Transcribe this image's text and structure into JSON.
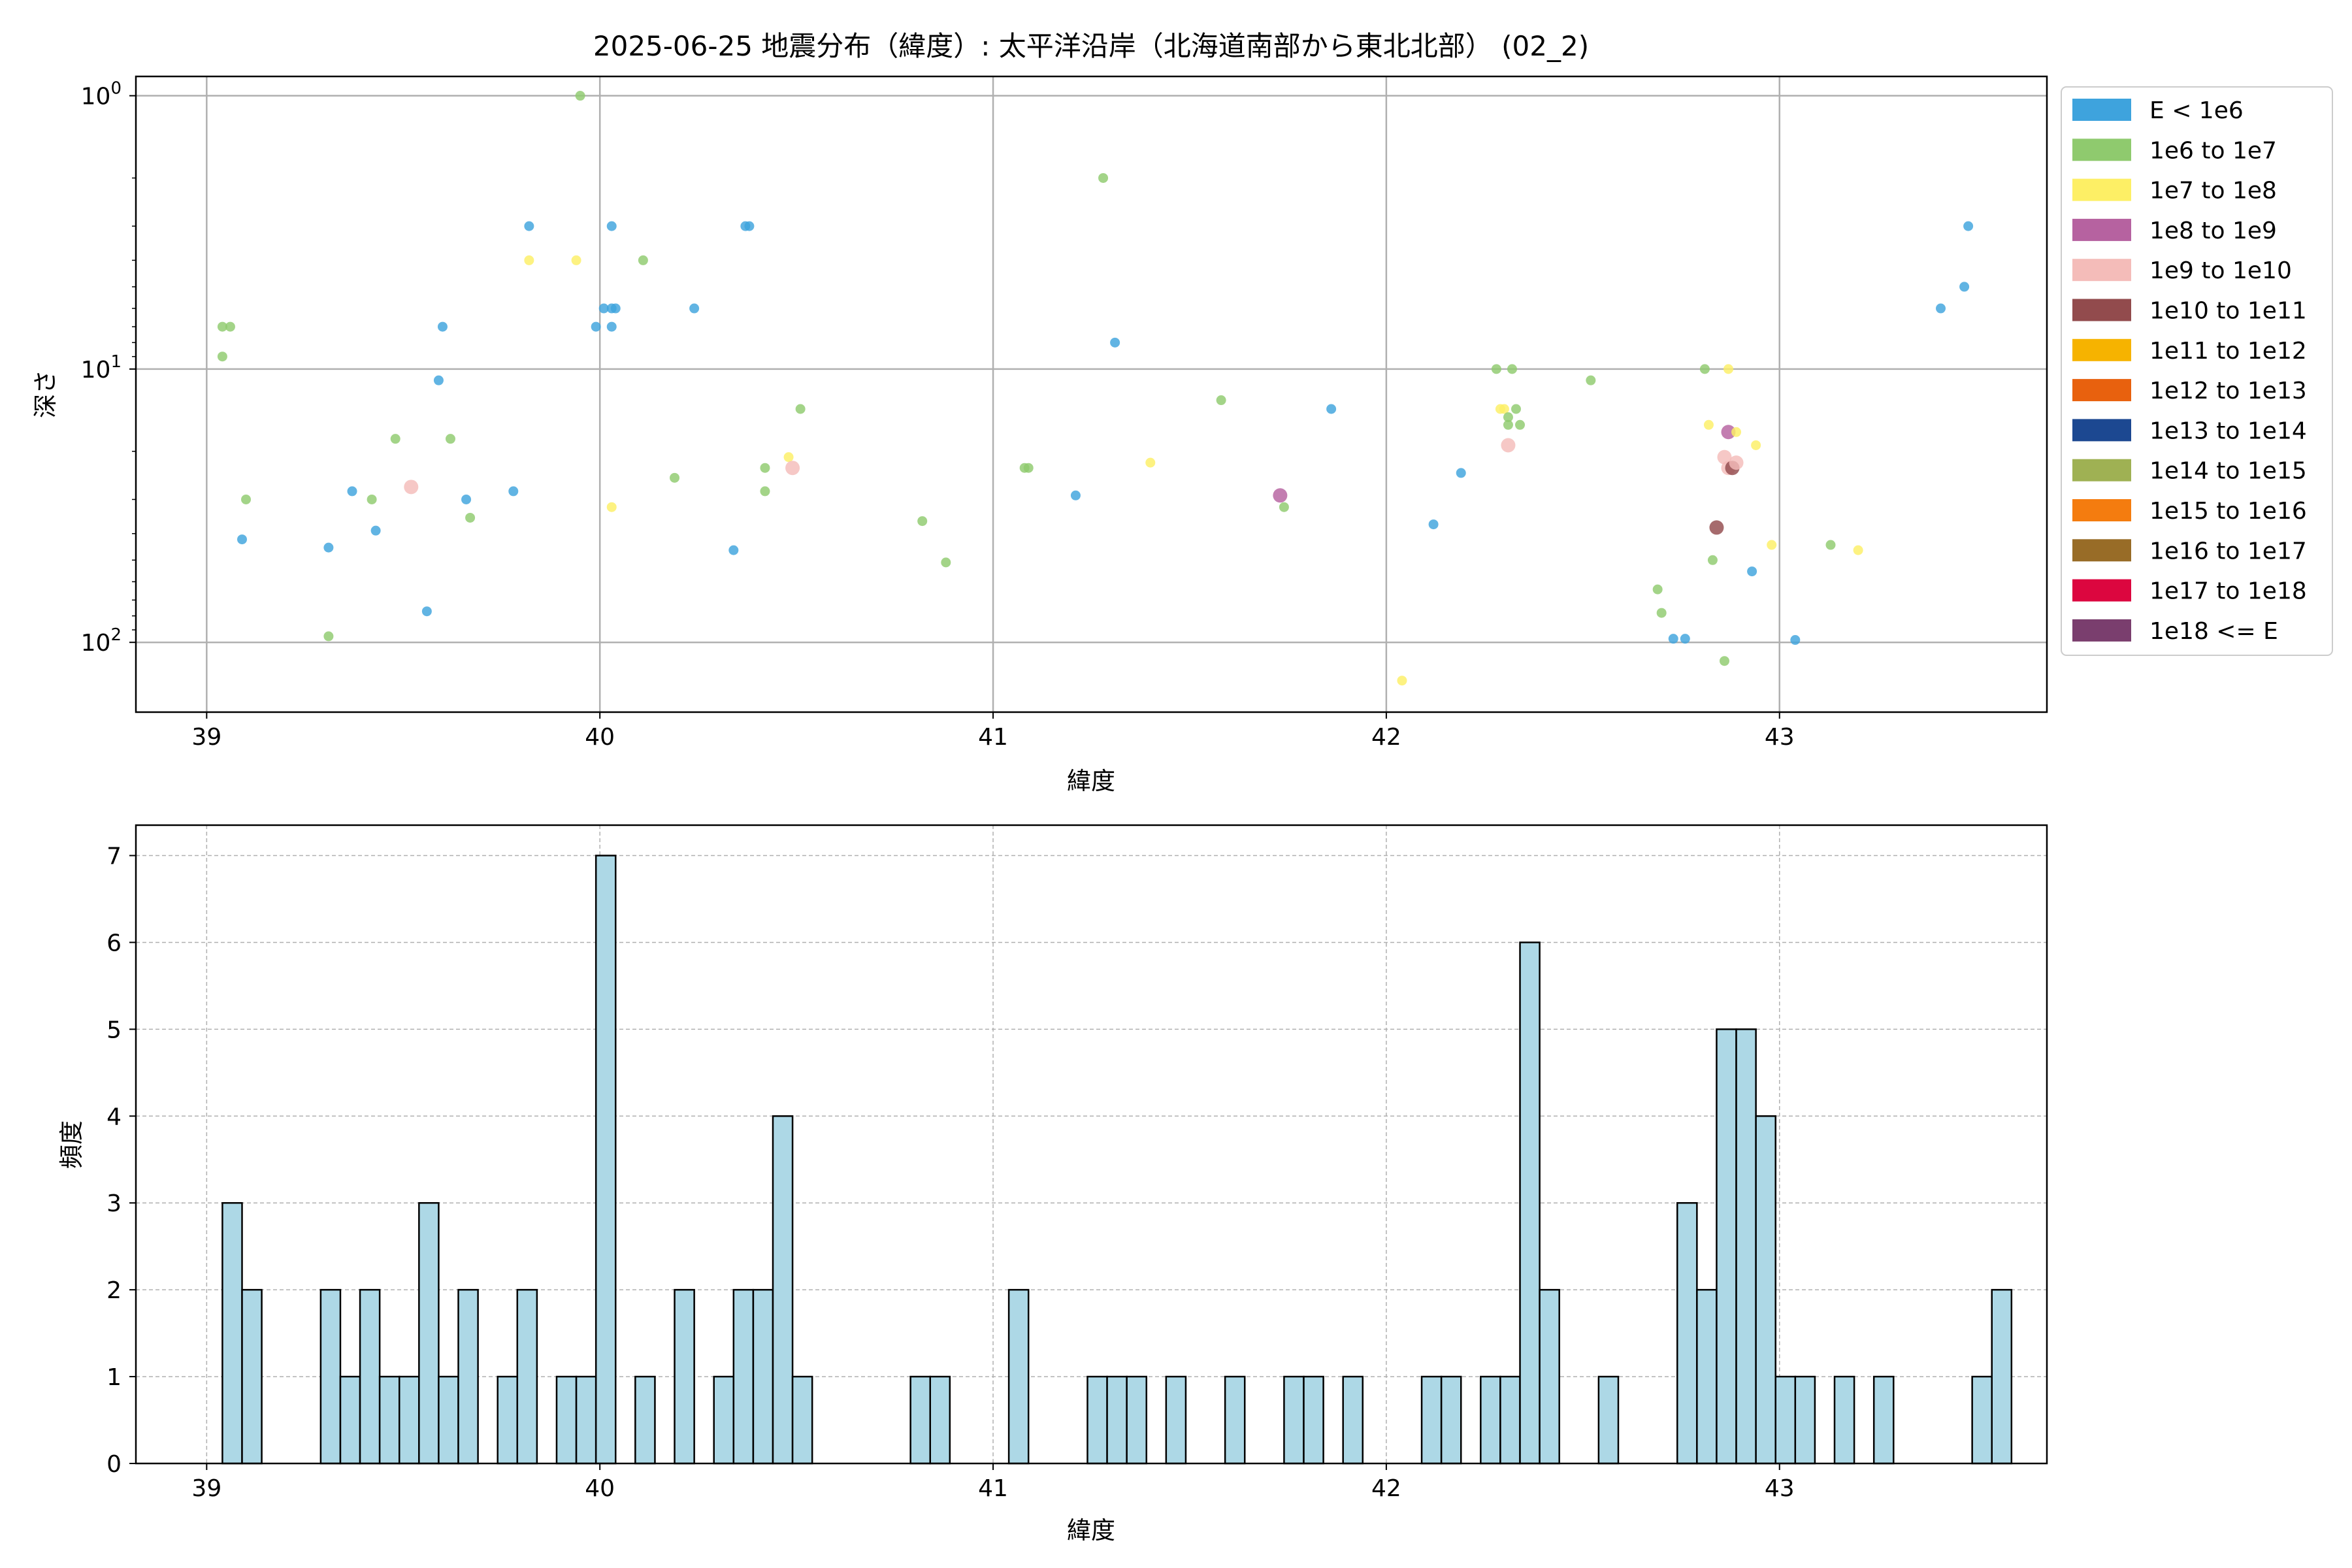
{
  "chart_data": [
    {
      "type": "scatter",
      "title": "2025-06-25 地震分布（緯度）: 太平洋沿岸（北海道南部から東北北部） (02_2)",
      "xlabel": "緯度",
      "ylabel": "深さ",
      "xlim": [
        38.82,
        43.68
      ],
      "ylim": [
        180,
        0.85
      ],
      "y_scale": "log",
      "y_inverted": true,
      "x_ticks": [
        39,
        40,
        41,
        42,
        43
      ],
      "y_ticks": [
        {
          "value": 1,
          "base": "10",
          "exp": "0"
        },
        {
          "value": 10,
          "base": "10",
          "exp": "1"
        },
        {
          "value": 100,
          "base": "10",
          "exp": "2"
        }
      ],
      "grid": true,
      "legend_position": "outside-right",
      "legend": [
        {
          "label": "E < 1e6",
          "color": "#3ea3dd"
        },
        {
          "label": "1e6 to 1e7",
          "color": "#8fca6e"
        },
        {
          "label": "1e7 to 1e8",
          "color": "#fdef65"
        },
        {
          "label": "1e8 to 1e9",
          "color": "#b662a0"
        },
        {
          "label": "1e9 to 1e10",
          "color": "#f4bcb9"
        },
        {
          "label": "1e10 to 1e11",
          "color": "#924b4d"
        },
        {
          "label": "1e11 to 1e12",
          "color": "#f6b300"
        },
        {
          "label": "1e12 to 1e13",
          "color": "#e8610e"
        },
        {
          "label": "1e13 to 1e14",
          "color": "#1c4891"
        },
        {
          "label": "1e14 to 1e15",
          "color": "#9fb153"
        },
        {
          "label": "1e15 to 1e16",
          "color": "#f47c0f"
        },
        {
          "label": "1e16 to 1e17",
          "color": "#986c27"
        },
        {
          "label": "1e17 to 1e18",
          "color": "#dc063f"
        },
        {
          "label": "1e18 <= E",
          "color": "#7a3e6e"
        }
      ],
      "points": [
        {
          "x": 39.04,
          "y": 7,
          "c": 1
        },
        {
          "x": 39.06,
          "y": 7,
          "c": 1
        },
        {
          "x": 39.04,
          "y": 9,
          "c": 1
        },
        {
          "x": 39.1,
          "y": 30,
          "c": 1
        },
        {
          "x": 39.09,
          "y": 42,
          "c": 0
        },
        {
          "x": 39.31,
          "y": 45,
          "c": 0
        },
        {
          "x": 39.31,
          "y": 95,
          "c": 1
        },
        {
          "x": 39.37,
          "y": 28,
          "c": 0
        },
        {
          "x": 39.42,
          "y": 30,
          "c": 1
        },
        {
          "x": 39.43,
          "y": 39,
          "c": 0
        },
        {
          "x": 39.48,
          "y": 18,
          "c": 1
        },
        {
          "x": 39.52,
          "y": 27,
          "c": 4
        },
        {
          "x": 39.56,
          "y": 77,
          "c": 0
        },
        {
          "x": 39.59,
          "y": 11,
          "c": 0
        },
        {
          "x": 39.6,
          "y": 7,
          "c": 0
        },
        {
          "x": 39.62,
          "y": 18,
          "c": 1
        },
        {
          "x": 39.66,
          "y": 30,
          "c": 0
        },
        {
          "x": 39.67,
          "y": 35,
          "c": 1
        },
        {
          "x": 39.78,
          "y": 28,
          "c": 0
        },
        {
          "x": 39.82,
          "y": 3,
          "c": 0
        },
        {
          "x": 39.82,
          "y": 4,
          "c": 2
        },
        {
          "x": 39.94,
          "y": 4,
          "c": 2
        },
        {
          "x": 39.95,
          "y": 1,
          "c": 1
        },
        {
          "x": 39.99,
          "y": 7,
          "c": 0
        },
        {
          "x": 40.01,
          "y": 6,
          "c": 0
        },
        {
          "x": 40.03,
          "y": 6,
          "c": 0
        },
        {
          "x": 40.03,
          "y": 7,
          "c": 0
        },
        {
          "x": 40.04,
          "y": 6,
          "c": 0
        },
        {
          "x": 40.03,
          "y": 3,
          "c": 0
        },
        {
          "x": 40.03,
          "y": 32,
          "c": 2
        },
        {
          "x": 40.11,
          "y": 4,
          "c": 1
        },
        {
          "x": 40.19,
          "y": 25,
          "c": 1
        },
        {
          "x": 40.24,
          "y": 6,
          "c": 0
        },
        {
          "x": 40.34,
          "y": 46,
          "c": 0
        },
        {
          "x": 40.38,
          "y": 3,
          "c": 0
        },
        {
          "x": 40.37,
          "y": 3,
          "c": 0
        },
        {
          "x": 40.42,
          "y": 23,
          "c": 1
        },
        {
          "x": 40.42,
          "y": 28,
          "c": 1
        },
        {
          "x": 40.48,
          "y": 21,
          "c": 2
        },
        {
          "x": 40.49,
          "y": 23,
          "c": 4
        },
        {
          "x": 40.51,
          "y": 14,
          "c": 1
        },
        {
          "x": 40.82,
          "y": 36,
          "c": 1
        },
        {
          "x": 40.88,
          "y": 51,
          "c": 1
        },
        {
          "x": 41.08,
          "y": 23,
          "c": 1
        },
        {
          "x": 41.09,
          "y": 23,
          "c": 1
        },
        {
          "x": 41.21,
          "y": 29,
          "c": 0
        },
        {
          "x": 41.28,
          "y": 2,
          "c": 1
        },
        {
          "x": 41.31,
          "y": 8,
          "c": 0
        },
        {
          "x": 41.4,
          "y": 22,
          "c": 2
        },
        {
          "x": 41.58,
          "y": 13,
          "c": 1
        },
        {
          "x": 41.73,
          "y": 29,
          "c": 3
        },
        {
          "x": 41.74,
          "y": 32,
          "c": 1
        },
        {
          "x": 41.86,
          "y": 14,
          "c": 0
        },
        {
          "x": 42.04,
          "y": 138,
          "c": 2
        },
        {
          "x": 42.12,
          "y": 37,
          "c": 0
        },
        {
          "x": 42.19,
          "y": 24,
          "c": 0
        },
        {
          "x": 42.28,
          "y": 10,
          "c": 1
        },
        {
          "x": 42.29,
          "y": 14,
          "c": 2
        },
        {
          "x": 42.3,
          "y": 14,
          "c": 2
        },
        {
          "x": 42.31,
          "y": 15,
          "c": 1
        },
        {
          "x": 42.31,
          "y": 16,
          "c": 1
        },
        {
          "x": 42.31,
          "y": 19,
          "c": 4
        },
        {
          "x": 42.32,
          "y": 10,
          "c": 1
        },
        {
          "x": 42.33,
          "y": 14,
          "c": 1
        },
        {
          "x": 42.34,
          "y": 16,
          "c": 1
        },
        {
          "x": 42.52,
          "y": 11,
          "c": 1
        },
        {
          "x": 42.69,
          "y": 64,
          "c": 1
        },
        {
          "x": 42.7,
          "y": 78,
          "c": 1
        },
        {
          "x": 42.73,
          "y": 97,
          "c": 0
        },
        {
          "x": 42.76,
          "y": 97,
          "c": 0
        },
        {
          "x": 42.81,
          "y": 10,
          "c": 1
        },
        {
          "x": 42.82,
          "y": 16,
          "c": 2
        },
        {
          "x": 42.83,
          "y": 50,
          "c": 1
        },
        {
          "x": 42.84,
          "y": 38,
          "c": 5
        },
        {
          "x": 42.86,
          "y": 21,
          "c": 4
        },
        {
          "x": 42.86,
          "y": 117,
          "c": 1
        },
        {
          "x": 42.87,
          "y": 10,
          "c": 2
        },
        {
          "x": 42.87,
          "y": 17,
          "c": 3
        },
        {
          "x": 42.87,
          "y": 23,
          "c": 4
        },
        {
          "x": 42.88,
          "y": 23,
          "c": 5
        },
        {
          "x": 42.89,
          "y": 22,
          "c": 4
        },
        {
          "x": 42.89,
          "y": 17,
          "c": 2
        },
        {
          "x": 42.93,
          "y": 55,
          "c": 0
        },
        {
          "x": 42.94,
          "y": 19,
          "c": 2
        },
        {
          "x": 42.98,
          "y": 44,
          "c": 2
        },
        {
          "x": 43.04,
          "y": 98,
          "c": 0
        },
        {
          "x": 43.13,
          "y": 44,
          "c": 1
        },
        {
          "x": 43.2,
          "y": 46,
          "c": 2
        },
        {
          "x": 43.41,
          "y": 6,
          "c": 0
        },
        {
          "x": 43.47,
          "y": 5,
          "c": 0
        },
        {
          "x": 43.48,
          "y": 3,
          "c": 0
        }
      ]
    },
    {
      "type": "bar",
      "title": "",
      "xlabel": "緯度",
      "ylabel": "頻度",
      "xlim": [
        38.82,
        43.68
      ],
      "ylim": [
        0,
        7.35
      ],
      "x_ticks": [
        39,
        40,
        41,
        42,
        43
      ],
      "y_ticks": [
        0,
        1,
        2,
        3,
        4,
        5,
        6,
        7
      ],
      "grid": true,
      "bar_color": "#add8e6",
      "bin_start": 39.04,
      "bin_width": 0.05,
      "values": [
        3,
        2,
        0,
        0,
        0,
        2,
        1,
        2,
        1,
        1,
        3,
        1,
        2,
        0,
        1,
        2,
        0,
        1,
        1,
        7,
        0,
        1,
        0,
        2,
        0,
        1,
        2,
        2,
        4,
        1,
        0,
        0,
        0,
        0,
        0,
        1,
        1,
        0,
        0,
        0,
        2,
        0,
        0,
        0,
        1,
        1,
        1,
        0,
        1,
        0,
        0,
        1,
        0,
        0,
        1,
        1,
        0,
        1,
        0,
        0,
        0,
        1,
        1,
        0,
        1,
        1,
        6,
        2,
        0,
        0,
        1,
        0,
        0,
        0,
        3,
        2,
        5,
        5,
        4,
        1,
        1,
        0,
        1,
        0,
        1,
        0,
        0,
        0,
        0,
        1,
        2
      ]
    }
  ]
}
